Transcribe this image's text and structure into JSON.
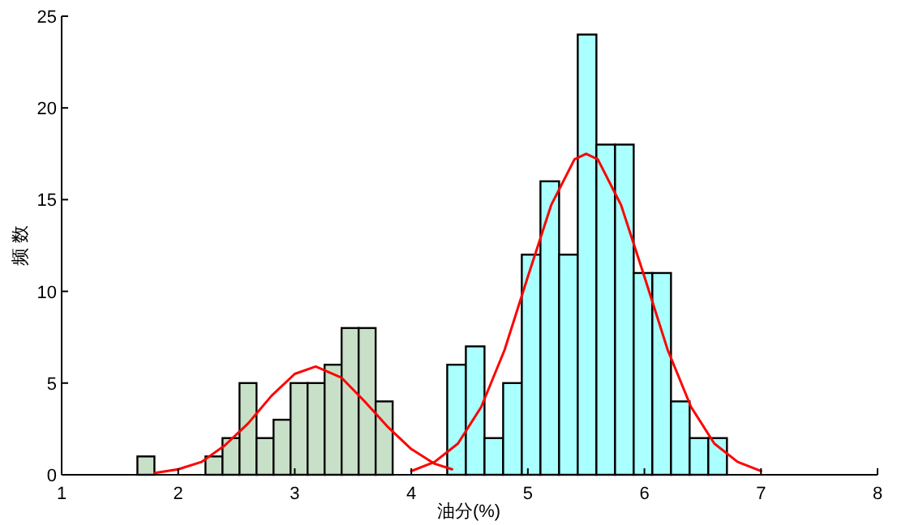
{
  "chart_data": {
    "type": "histogram",
    "xlabel": "油分(%)",
    "ylabel": "频 数",
    "xlim": [
      1,
      8
    ],
    "xticks": [
      1,
      2,
      3,
      4,
      5,
      6,
      7,
      8
    ],
    "ylim": [
      0,
      25
    ],
    "yticks": [
      0,
      5,
      10,
      15,
      20,
      25
    ],
    "series": [
      {
        "color": "#c8e0c8",
        "bins": [
          1.65,
          1.796,
          1.942,
          2.088,
          2.234,
          2.38,
          2.526,
          2.672,
          2.818,
          2.964,
          3.11,
          3.256,
          3.402,
          3.548,
          3.694,
          3.84
        ],
        "values": [
          1,
          0,
          0,
          0,
          1,
          2,
          5,
          2,
          3,
          5,
          5,
          6,
          8,
          8,
          4
        ]
      },
      {
        "color": "#aaffff",
        "bins": [
          4.308,
          4.468,
          4.628,
          4.788,
          4.948,
          5.108,
          5.268,
          5.428,
          5.588,
          5.748,
          5.908,
          6.068,
          6.228,
          6.388,
          6.548,
          6.708
        ],
        "values": [
          6,
          7,
          2,
          5,
          12,
          16,
          12,
          24,
          18,
          18,
          11,
          11,
          4,
          2,
          2
        ]
      },
      {
        "type": "line",
        "color": "#ff0000",
        "x": [
          1.8,
          2.0,
          2.2,
          2.4,
          2.6,
          2.8,
          3.0,
          3.18,
          3.4,
          3.6,
          3.8,
          4.0,
          4.2,
          4.35
        ],
        "values": [
          0.1,
          0.3,
          0.7,
          1.6,
          2.8,
          4.3,
          5.5,
          5.9,
          5.3,
          4.0,
          2.6,
          1.4,
          0.6,
          0.3
        ]
      },
      {
        "type": "line",
        "color": "#ff0000",
        "x": [
          4.0,
          4.2,
          4.4,
          4.6,
          4.8,
          5.0,
          5.2,
          5.4,
          5.5,
          5.6,
          5.8,
          6.0,
          6.2,
          6.4,
          6.6,
          6.8,
          7.0
        ],
        "values": [
          0.2,
          0.7,
          1.7,
          3.7,
          6.8,
          10.8,
          14.7,
          17.2,
          17.5,
          17.2,
          14.7,
          10.8,
          6.8,
          3.7,
          1.7,
          0.7,
          0.2
        ]
      }
    ]
  }
}
